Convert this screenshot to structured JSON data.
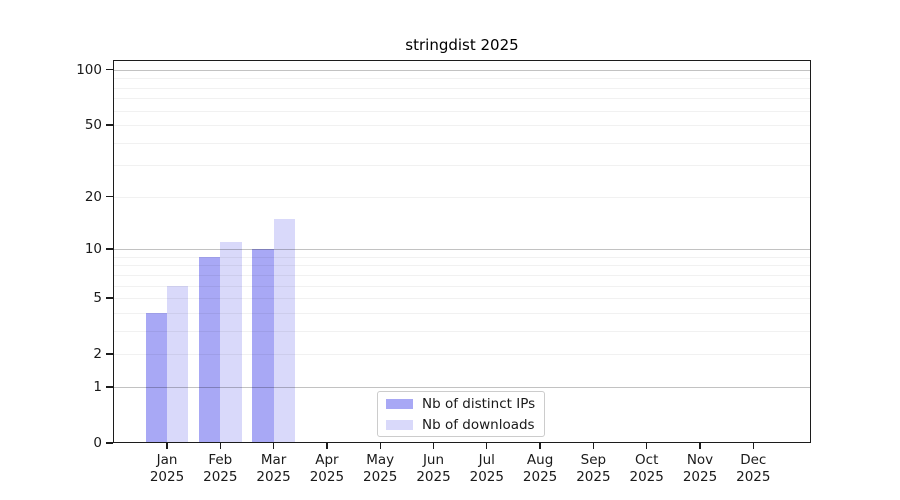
{
  "chart_data": {
    "type": "bar",
    "title": "stringdist 2025",
    "categories": [
      "Jan",
      "Feb",
      "Mar",
      "Apr",
      "May",
      "Jun",
      "Jul",
      "Aug",
      "Sep",
      "Oct",
      "Nov",
      "Dec"
    ],
    "x_year_label": "2025",
    "series": [
      {
        "name": "Nb of distinct IPs",
        "color": "#a8a8f5",
        "values": [
          4,
          9,
          10,
          0,
          0,
          0,
          0,
          0,
          0,
          0,
          0,
          0
        ]
      },
      {
        "name": "Nb of downloads",
        "color": "#d9d9fa",
        "values": [
          6,
          11,
          15,
          0,
          0,
          0,
          0,
          0,
          0,
          0,
          0,
          0
        ]
      }
    ],
    "yscale": "log1p",
    "ylim": [
      0,
      113
    ],
    "y_ticks": [
      0,
      1,
      2,
      5,
      10,
      20,
      50,
      100
    ],
    "y_gridlines_major": [
      1,
      10,
      100
    ],
    "y_gridlines_minor": [
      2,
      3,
      4,
      5,
      6,
      7,
      8,
      9,
      20,
      30,
      40,
      50,
      60,
      70,
      80,
      90
    ],
    "grid": true,
    "legend_position": "lower center",
    "bar_width_fraction": 0.4
  }
}
